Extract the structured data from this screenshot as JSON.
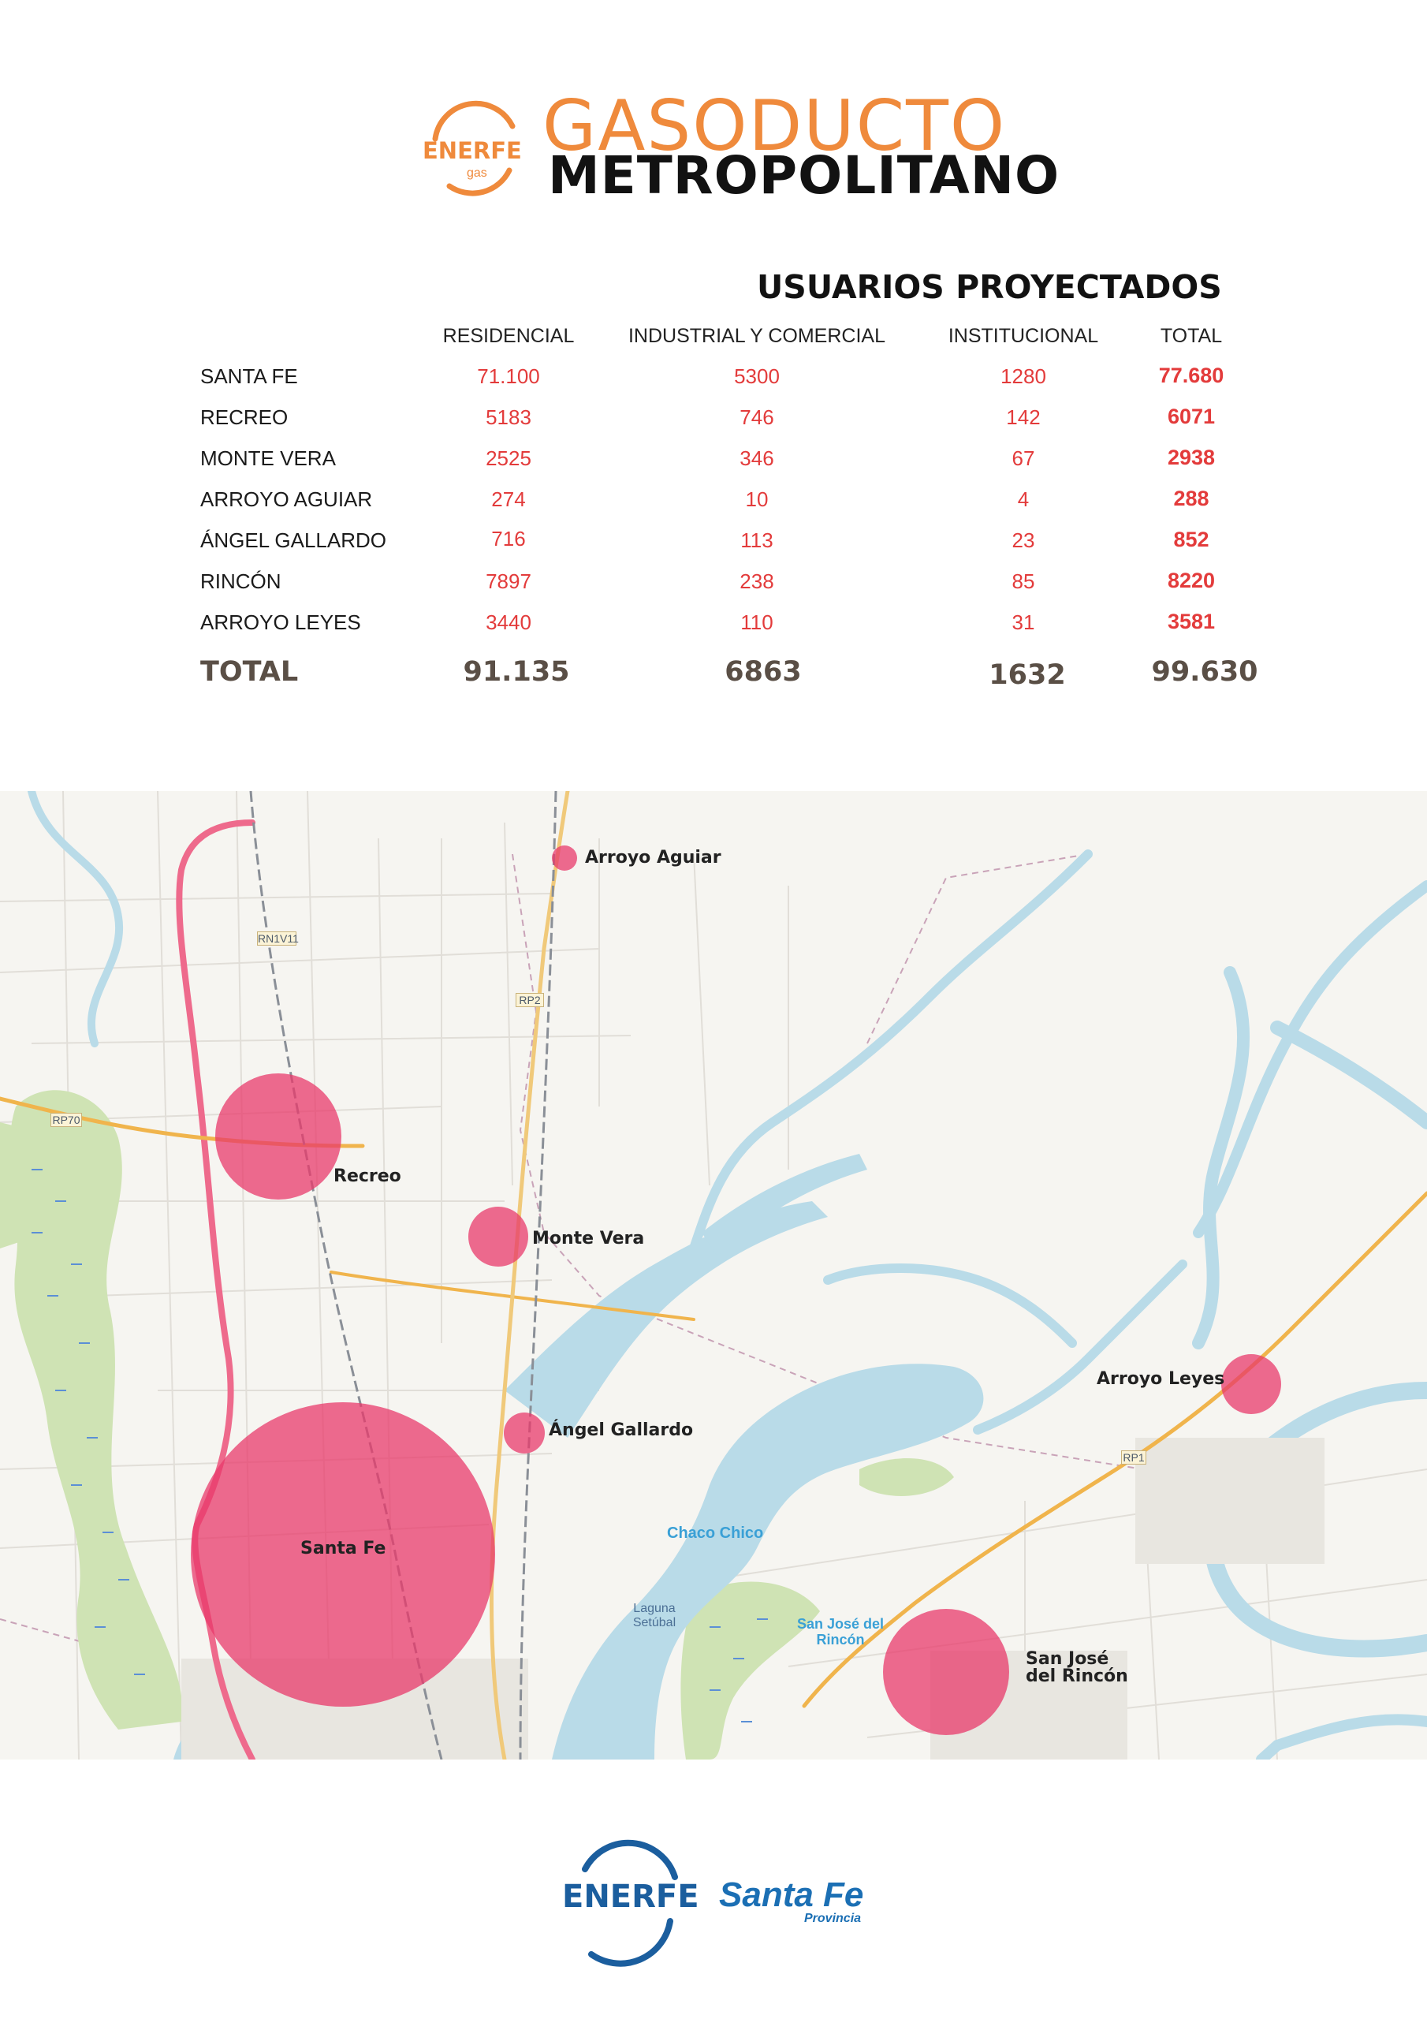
{
  "header": {
    "logo_small": "ENERFE",
    "logo_small_sub": "gas",
    "title_line1": "GASODUCTO",
    "title_line2": "METROPOLITANO"
  },
  "table": {
    "title": "USUARIOS PROYECTADOS",
    "columns": [
      "RESIDENCIAL",
      "INDUSTRIAL Y COMERCIAL",
      "INSTITUCIONAL",
      "TOTAL"
    ],
    "rows": [
      {
        "name": "SANTA FE",
        "residencial": "71.100",
        "industrial": "5300",
        "institucional": "1280",
        "total": "77.680"
      },
      {
        "name": "RECREO",
        "residencial": "5183",
        "industrial": "746",
        "institucional": "142",
        "total": "6071"
      },
      {
        "name": "MONTE VERA",
        "residencial": "2525",
        "industrial": "346",
        "institucional": "67",
        "total": "2938"
      },
      {
        "name": "ARROYO AGUIAR",
        "residencial": "274",
        "industrial": "10",
        "institucional": "4",
        "total": "288"
      },
      {
        "name": "ÁNGEL GALLARDO",
        "residencial": "716",
        "industrial": "113",
        "institucional": "23",
        "total": "852"
      },
      {
        "name": "RINCÓN",
        "residencial": "7897",
        "industrial": "238",
        "institucional": "85",
        "total": "8220"
      },
      {
        "name": "ARROYO LEYES",
        "residencial": "3440",
        "industrial": "110",
        "institucional": "31",
        "total": "3581"
      }
    ],
    "total": {
      "name": "TOTAL",
      "residencial": "91.135",
      "industrial": "6863",
      "institucional": "1632",
      "total": "99.630"
    }
  },
  "map": {
    "localities": [
      "Arroyo Aguiar",
      "Recreo",
      "Monte Vera",
      "Ángel Gallardo",
      "Santa Fe",
      "Arroyo Leyes",
      "San José\ndel Rincón"
    ],
    "water_labels": {
      "chaco_chico": "Chaco Chico",
      "laguna": "Laguna Setúbal",
      "sjr_blue": "San José del Rincón"
    },
    "road_labels": {
      "rn1v11": "RN1V11",
      "rp2": "RP2",
      "rp70": "RP70",
      "rp1": "RP1"
    },
    "colors": {
      "bubble": "#e8396b",
      "water": "#b9dbe8",
      "marsh": "#cfe3b4",
      "road": "#f0b44c",
      "main_road": "#ee6a8c"
    }
  },
  "footer": {
    "enerfe": "ENERFE",
    "santa_fe": "Santa Fe",
    "provincia": "Provincia"
  }
}
